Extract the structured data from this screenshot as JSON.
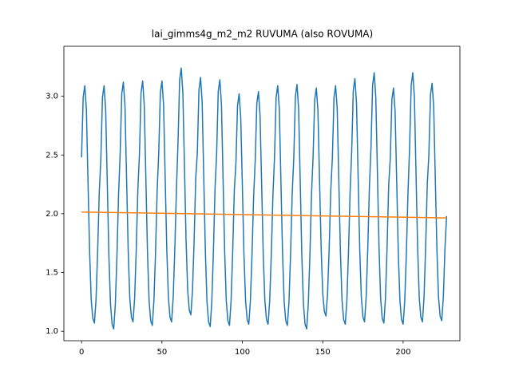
{
  "chart_data": {
    "type": "line",
    "title": "lai_gimms4g_m2_m2 RUVUMA (also ROVUMA)",
    "x": [
      0,
      1,
      2,
      3,
      4,
      5,
      6,
      7,
      8,
      9,
      10,
      11,
      12,
      13,
      14,
      15,
      16,
      17,
      18,
      19,
      20,
      21,
      22,
      23,
      24,
      25,
      26,
      27,
      28,
      29,
      30,
      31,
      32,
      33,
      34,
      35,
      36,
      37,
      38,
      39,
      40,
      41,
      42,
      43,
      44,
      45,
      46,
      47,
      48,
      49,
      50,
      51,
      52,
      53,
      54,
      55,
      56,
      57,
      58,
      59,
      60,
      61,
      62,
      63,
      64,
      65,
      66,
      67,
      68,
      69,
      70,
      71,
      72,
      73,
      74,
      75,
      76,
      77,
      78,
      79,
      80,
      81,
      82,
      83,
      84,
      85,
      86,
      87,
      88,
      89,
      90,
      91,
      92,
      93,
      94,
      95,
      96,
      97,
      98,
      99,
      100,
      101,
      102,
      103,
      104,
      105,
      106,
      107,
      108,
      109,
      110,
      111,
      112,
      113,
      114,
      115,
      116,
      117,
      118,
      119,
      120,
      121,
      122,
      123,
      124,
      125,
      126,
      127,
      128,
      129,
      130,
      131,
      132,
      133,
      134,
      135,
      136,
      137,
      138,
      139,
      140,
      141,
      142,
      143,
      144,
      145,
      146,
      147,
      148,
      149,
      150,
      151,
      152,
      153,
      154,
      155,
      156,
      157,
      158,
      159,
      160,
      161,
      162,
      163,
      164,
      165,
      166,
      167,
      168,
      169,
      170,
      171,
      172,
      173,
      174,
      175,
      176,
      177,
      178,
      179,
      180,
      181,
      182,
      183,
      184,
      185,
      186,
      187,
      188,
      189,
      190,
      191,
      192,
      193,
      194,
      195,
      196,
      197,
      198,
      199,
      200,
      201,
      202,
      203,
      204,
      205,
      206,
      207,
      208,
      209,
      210,
      211,
      212,
      213,
      214,
      215,
      216,
      217,
      218,
      219,
      220,
      221,
      222,
      223,
      224,
      225,
      226,
      227
    ],
    "series": [
      {
        "color": "#1f77b4",
        "values": [
          2.48,
          2.99,
          3.09,
          2.89,
          2.28,
          1.68,
          1.27,
          1.11,
          1.07,
          1.27,
          1.68,
          2.18,
          2.47,
          2.99,
          3.09,
          2.88,
          2.26,
          1.64,
          1.23,
          1.06,
          1.02,
          1.23,
          1.64,
          2.16,
          2.51,
          3.02,
          3.12,
          2.92,
          2.3,
          1.69,
          1.28,
          1.12,
          1.08,
          1.28,
          1.69,
          2.2,
          2.51,
          3.03,
          3.13,
          2.92,
          2.3,
          1.67,
          1.26,
          1.09,
          1.05,
          1.26,
          1.67,
          2.19,
          2.52,
          3.03,
          3.13,
          2.93,
          2.31,
          1.7,
          1.29,
          1.12,
          1.08,
          1.29,
          1.7,
          2.21,
          2.61,
          3.14,
          3.24,
          3.03,
          2.4,
          1.77,
          1.35,
          1.18,
          1.14,
          1.35,
          1.77,
          2.3,
          2.52,
          3.05,
          3.16,
          2.95,
          2.31,
          1.68,
          1.25,
          1.08,
          1.04,
          1.25,
          1.68,
          2.21,
          2.51,
          3.04,
          3.14,
          2.93,
          2.3,
          1.68,
          1.26,
          1.09,
          1.05,
          1.26,
          1.68,
          2.2,
          2.43,
          2.92,
          3.02,
          2.82,
          2.24,
          1.65,
          1.26,
          1.1,
          1.06,
          1.26,
          1.65,
          2.14,
          2.45,
          2.94,
          3.04,
          2.84,
          2.25,
          1.65,
          1.26,
          1.1,
          1.06,
          1.26,
          1.65,
          2.15,
          2.48,
          2.99,
          3.09,
          2.89,
          2.27,
          1.66,
          1.25,
          1.09,
          1.05,
          1.25,
          1.66,
          2.17,
          2.48,
          3.0,
          3.1,
          2.89,
          2.27,
          1.64,
          1.23,
          1.06,
          1.02,
          1.23,
          1.64,
          2.16,
          2.49,
          2.97,
          3.07,
          2.88,
          2.29,
          1.71,
          1.32,
          1.17,
          1.13,
          1.32,
          1.71,
          2.2,
          2.48,
          2.99,
          3.09,
          2.89,
          2.28,
          1.67,
          1.26,
          1.1,
          1.06,
          1.26,
          1.67,
          2.18,
          2.53,
          3.05,
          3.15,
          2.94,
          2.32,
          1.7,
          1.29,
          1.12,
          1.08,
          1.29,
          1.7,
          2.22,
          2.56,
          3.09,
          3.2,
          2.99,
          2.35,
          1.71,
          1.28,
          1.11,
          1.07,
          1.28,
          1.71,
          2.24,
          2.47,
          2.97,
          3.07,
          2.87,
          2.27,
          1.66,
          1.26,
          1.1,
          1.06,
          1.26,
          1.66,
          2.17,
          2.56,
          3.09,
          3.2,
          2.99,
          2.35,
          1.72,
          1.29,
          1.12,
          1.08,
          1.29,
          1.72,
          2.25,
          2.5,
          3.01,
          3.11,
          2.91,
          2.3,
          1.7,
          1.29,
          1.13,
          1.09,
          1.29,
          1.7,
          1.98
        ]
      },
      {
        "color": "#ff7f0e",
        "x": [
          0,
          227
        ],
        "values": [
          2.015,
          1.965
        ]
      }
    ],
    "xlim": [
      -11,
      235.3
    ],
    "ylim": [
      0.92,
      3.425
    ],
    "xticks": [
      0,
      50,
      100,
      150,
      200
    ],
    "yticks": [
      {
        "value": 1,
        "label": "1.0"
      },
      1.5,
      {
        "value": 2,
        "label": "2.0"
      },
      2.5,
      {
        "value": 3,
        "label": "3.0"
      }
    ]
  }
}
